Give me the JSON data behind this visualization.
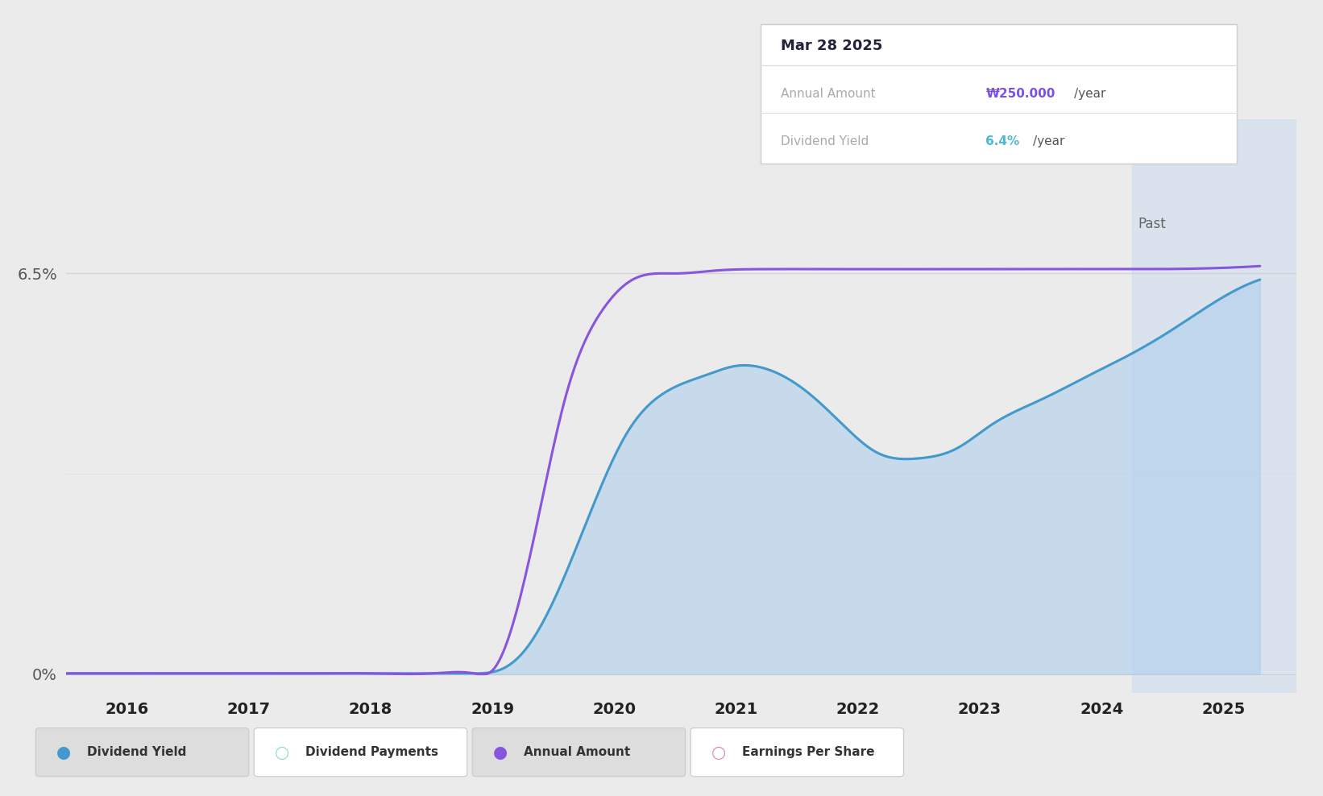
{
  "background_color": "#ebebeb",
  "plot_bg_color": "#ebebeb",
  "y_ticks": [
    0.0,
    6.5
  ],
  "y_labels": [
    "0%",
    "6.5%"
  ],
  "x_ticks": [
    2016,
    2017,
    2018,
    2019,
    2020,
    2021,
    2022,
    2023,
    2024,
    2025
  ],
  "ylim": [
    -0.3,
    9.0
  ],
  "xlim": [
    2015.5,
    2025.6
  ],
  "future_start": 2024.25,
  "tooltip": {
    "date": "Mar 28 2025",
    "annual_amount_label": "Annual Amount",
    "annual_amount_color": "#7b4fe8",
    "dividend_yield_label": "Dividend Yield",
    "dividend_yield_color": "#4db8d0"
  },
  "dividend_yield_points": {
    "x": [
      2015.5,
      2016.0,
      2016.5,
      2017.0,
      2017.5,
      2018.0,
      2018.5,
      2018.85,
      2019.05,
      2019.25,
      2019.55,
      2019.85,
      2020.1,
      2020.4,
      2020.75,
      2021.0,
      2021.25,
      2021.6,
      2021.9,
      2022.15,
      2022.5,
      2022.8,
      2023.1,
      2023.5,
      2023.9,
      2024.2,
      2024.55,
      2024.9,
      2025.3
    ],
    "y": [
      0.01,
      0.01,
      0.01,
      0.01,
      0.01,
      0.01,
      0.01,
      0.01,
      0.06,
      0.35,
      1.4,
      2.85,
      3.9,
      4.55,
      4.85,
      5.0,
      4.95,
      4.55,
      4.0,
      3.6,
      3.5,
      3.65,
      4.05,
      4.45,
      4.85,
      5.15,
      5.55,
      6.0,
      6.4
    ],
    "color": "#4499cc",
    "fill_color": "#aaccee",
    "fill_alpha": 0.55,
    "linewidth": 2.2
  },
  "annual_amount_points": {
    "x": [
      2015.5,
      2016.0,
      2016.5,
      2017.0,
      2017.5,
      2018.0,
      2018.5,
      2018.85,
      2019.0,
      2019.15,
      2019.35,
      2019.6,
      2019.9,
      2020.15,
      2020.5,
      2020.85,
      2021.2,
      2022.0,
      2022.5,
      2023.0,
      2023.5,
      2024.0,
      2024.3,
      2025.3
    ],
    "y": [
      0.01,
      0.01,
      0.01,
      0.01,
      0.01,
      0.01,
      0.01,
      0.01,
      0.06,
      0.7,
      2.3,
      4.5,
      5.9,
      6.4,
      6.5,
      6.55,
      6.57,
      6.57,
      6.57,
      6.57,
      6.57,
      6.57,
      6.57,
      6.62
    ],
    "color": "#8855dd",
    "linewidth": 2.2
  },
  "past_label": {
    "text": "Past",
    "color": "#666666",
    "fontsize": 12
  },
  "legend": [
    {
      "label": "Dividend Yield",
      "color": "#4499cc",
      "type": "filled_circle",
      "bg": "#dddddd"
    },
    {
      "label": "Dividend Payments",
      "color": "#88ddcc",
      "type": "open_circle",
      "bg": "#ffffff"
    },
    {
      "label": "Annual Amount",
      "color": "#8855dd",
      "type": "filled_circle",
      "bg": "#dddddd"
    },
    {
      "label": "Earnings Per Share",
      "color": "#dd88aa",
      "type": "open_circle",
      "bg": "#ffffff"
    }
  ],
  "grid_color": "#cccccc",
  "grid_alpha": 0.8
}
